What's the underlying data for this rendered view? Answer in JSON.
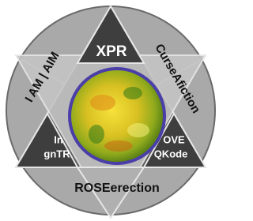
{
  "labels": {
    "top": "XPR",
    "upper_right": "CurseAfiction",
    "upper_left": "I AM | AIM",
    "bottom": "ROSEerection",
    "lower_left": [
      "In",
      "gnTR"
    ],
    "lower_right": [
      "OVE",
      "QKode"
    ]
  }
}
